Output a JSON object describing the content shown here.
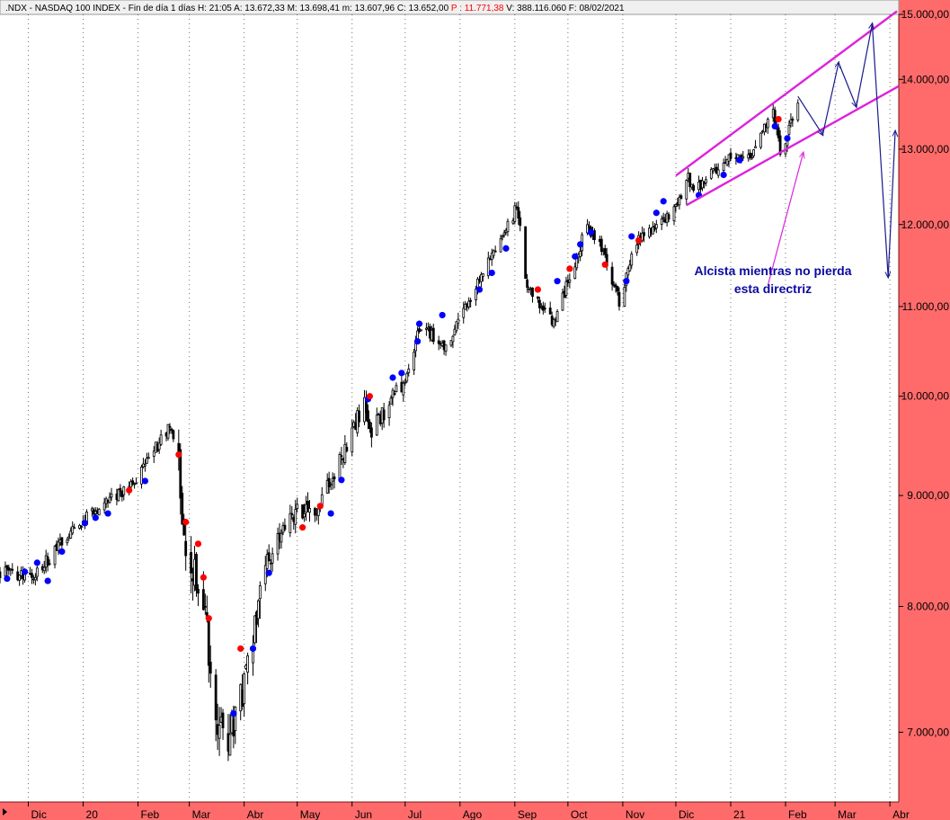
{
  "header": {
    "symbol": ".NDX",
    "name": "NASDAQ 100 INDEX",
    "period": "Fin de día 1 días",
    "time": "H: 21:05",
    "open": "A: 13.672,33",
    "high": "M: 13.698,41",
    "low": "m: 13.607,96",
    "close": "C: 13.652,00",
    "p_value": "P : 11.771,38",
    "volume": "V: 388.116.060",
    "date": "F: 08/02/2021"
  },
  "colors": {
    "axis_bg": "#ff6b6b",
    "candle": "#000000",
    "buy_dot": "#0000ff",
    "sell_dot": "#ff0000",
    "channel": "#dd22dd",
    "projection": "#1a1a8c",
    "annotation": "#0a0aa0"
  },
  "chart_data": {
    "type": "candlestick",
    "scale": "log",
    "ylim": [
      6500,
      15000
    ],
    "y_ticks": [
      "7.000,00",
      "8.000,00",
      "9.000,00",
      "10.000,00",
      "11.000,00",
      "12.000,00",
      "13.000,00",
      "14.000,00",
      "15.000,00"
    ],
    "y_tick_values": [
      7000,
      8000,
      9000,
      10000,
      11000,
      12000,
      13000,
      14000,
      15000
    ],
    "x_ticks": [
      "Dic",
      "20",
      "Feb",
      "Mar",
      "Abr",
      "May",
      "Jun",
      "Jul",
      "Ago",
      "Sep",
      "Oct",
      "Nov",
      "Dic",
      "21",
      "Feb",
      "Mar",
      "Abr"
    ],
    "x_tick_dates": [
      "2019-12-01",
      "2020-01-01",
      "2020-02-01",
      "2020-03-01",
      "2020-04-01",
      "2020-05-01",
      "2020-06-01",
      "2020-07-01",
      "2020-08-01",
      "2020-09-01",
      "2020-10-01",
      "2020-11-01",
      "2020-12-01",
      "2021-01-01",
      "2021-02-01",
      "2021-03-01",
      "2021-04-01"
    ],
    "x_range": [
      "2019-11-15",
      "2021-04-06"
    ],
    "grid": "vertical dotted at month starts",
    "price_keypoints": [
      [
        "2019-11-15",
        8300
      ],
      [
        "2019-12-03",
        8250
      ],
      [
        "2019-12-31",
        8750
      ],
      [
        "2020-01-31",
        9150
      ],
      [
        "2020-02-19",
        9700
      ],
      [
        "2020-02-24",
        9300
      ],
      [
        "2020-02-28",
        8500
      ],
      [
        "2020-03-09",
        8100
      ],
      [
        "2020-03-16",
        7100
      ],
      [
        "2020-03-20",
        6950
      ],
      [
        "2020-03-23",
        6900
      ],
      [
        "2020-04-03",
        7500
      ],
      [
        "2020-04-14",
        8400
      ],
      [
        "2020-04-30",
        8850
      ],
      [
        "2020-05-13",
        8900
      ],
      [
        "2020-06-03",
        9700
      ],
      [
        "2020-06-08",
        10000
      ],
      [
        "2020-06-11",
        9600
      ],
      [
        "2020-06-30",
        10150
      ],
      [
        "2020-07-10",
        10800
      ],
      [
        "2020-07-24",
        10500
      ],
      [
        "2020-08-04",
        11000
      ],
      [
        "2020-08-31",
        12100
      ],
      [
        "2020-09-02",
        12300
      ],
      [
        "2020-09-08",
        11200
      ],
      [
        "2020-09-23",
        10800
      ],
      [
        "2020-10-12",
        12000
      ],
      [
        "2020-10-20",
        11700
      ],
      [
        "2020-10-30",
        11050
      ],
      [
        "2020-11-09",
        11800
      ],
      [
        "2020-11-30",
        12200
      ],
      [
        "2020-12-08",
        12600
      ],
      [
        "2020-12-11",
        12450
      ],
      [
        "2020-12-31",
        12850
      ],
      [
        "2021-01-12",
        12850
      ],
      [
        "2021-01-25",
        13550
      ],
      [
        "2021-01-29",
        12950
      ],
      [
        "2021-02-08",
        13650
      ]
    ],
    "buy_signals": [
      [
        "2019-11-19",
        8240
      ],
      [
        "2019-11-29",
        8300
      ],
      [
        "2019-12-06",
        8380
      ],
      [
        "2019-12-12",
        8220
      ],
      [
        "2019-12-20",
        8480
      ],
      [
        "2020-01-02",
        8740
      ],
      [
        "2020-01-08",
        8790
      ],
      [
        "2020-01-15",
        8830
      ],
      [
        "2020-02-05",
        9140
      ],
      [
        "2020-03-26",
        7140
      ],
      [
        "2020-04-06",
        7650
      ],
      [
        "2020-04-15",
        8290
      ],
      [
        "2020-05-20",
        8830
      ],
      [
        "2020-05-26",
        9150
      ],
      [
        "2020-06-10",
        9970
      ],
      [
        "2020-06-24",
        10200
      ],
      [
        "2020-06-29",
        10250
      ],
      [
        "2020-07-08",
        10600
      ],
      [
        "2020-07-09",
        10800
      ],
      [
        "2020-07-22",
        10900
      ],
      [
        "2020-08-12",
        11200
      ],
      [
        "2020-08-19",
        11400
      ],
      [
        "2020-08-27",
        11700
      ],
      [
        "2020-09-25",
        11300
      ],
      [
        "2020-10-05",
        11600
      ],
      [
        "2020-10-08",
        11750
      ],
      [
        "2020-10-14",
        11900
      ],
      [
        "2020-11-03",
        11300
      ],
      [
        "2020-11-06",
        11850
      ],
      [
        "2020-11-20",
        12150
      ],
      [
        "2020-11-24",
        12300
      ],
      [
        "2020-12-14",
        12380
      ],
      [
        "2020-12-28",
        12650
      ],
      [
        "2021-01-06",
        12850
      ],
      [
        "2021-01-26",
        13320
      ],
      [
        "2021-02-02",
        13150
      ]
    ],
    "sell_signals": [
      [
        "2020-01-27",
        9050
      ],
      [
        "2020-02-24",
        9400
      ],
      [
        "2020-02-28",
        8750
      ],
      [
        "2020-03-06",
        8550
      ],
      [
        "2020-03-09",
        8250
      ],
      [
        "2020-03-12",
        7900
      ],
      [
        "2020-03-30",
        7650
      ],
      [
        "2020-05-04",
        8700
      ],
      [
        "2020-05-14",
        8900
      ],
      [
        "2020-06-11",
        10000
      ],
      [
        "2020-09-14",
        11200
      ],
      [
        "2020-10-02",
        11450
      ],
      [
        "2020-10-22",
        11500
      ],
      [
        "2020-11-10",
        11800
      ],
      [
        "2021-01-28",
        13420
      ]
    ],
    "channel_lines": [
      {
        "name": "upper",
        "from": [
          "2020-12-01",
          12640
        ],
        "to": [
          "2021-04-05",
          15050
        ]
      },
      {
        "name": "lower",
        "from": [
          "2020-12-07",
          12250
        ],
        "to": [
          "2021-04-06",
          13900
        ]
      }
    ],
    "projection": [
      [
        "2021-02-08",
        13750
      ],
      [
        "2021-02-22",
        13200
      ],
      [
        "2021-03-03",
        14250
      ],
      [
        "2021-03-13",
        13600
      ],
      [
        "2021-03-22",
        14850
      ],
      [
        "2021-03-31",
        11350
      ],
      [
        "2021-04-04",
        13250
      ]
    ],
    "annotation_arrow": {
      "from": [
        "2021-01-22",
        11250
      ],
      "to": [
        "2021-02-11",
        12950
      ]
    },
    "annotation_text": [
      "Alcista mientras no pierda",
      "esta directriz"
    ]
  }
}
